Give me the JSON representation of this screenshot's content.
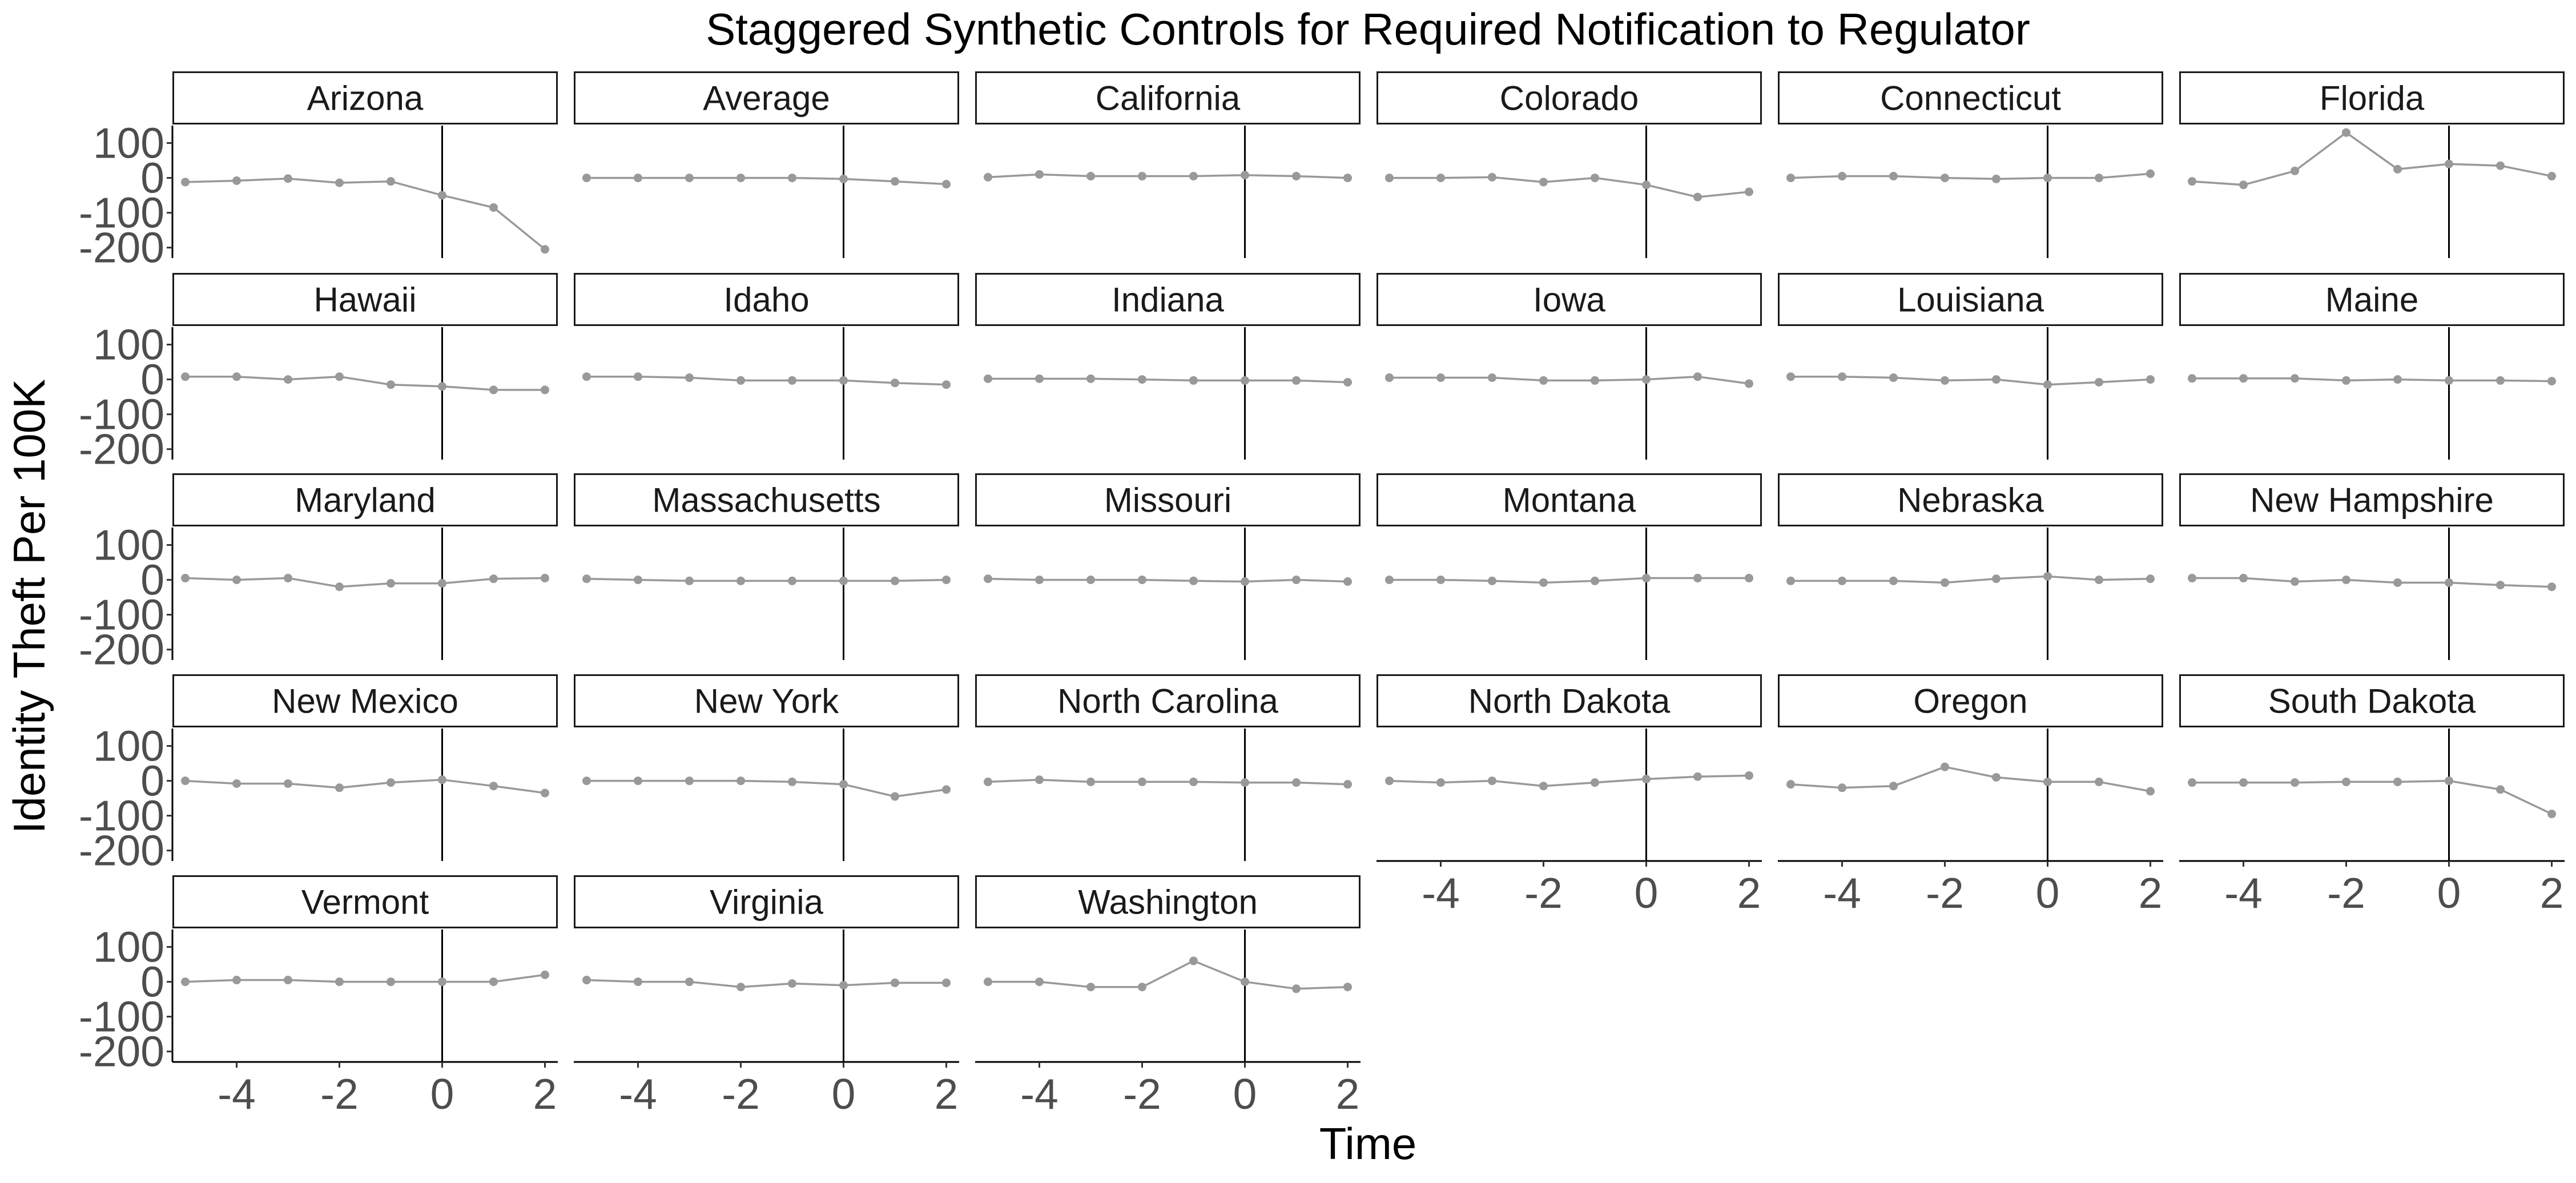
{
  "chart_data": {
    "type": "line",
    "title": "Staggered Synthetic Controls for Required Notification to Regulator",
    "xlabel": "Time",
    "ylabel": "Identity Theft Per 100K",
    "xlim": [
      -5.25,
      2.25
    ],
    "ylim": [
      -230,
      150
    ],
    "x_ticks": [
      -4,
      -2,
      0,
      2
    ],
    "x_tick_labels": [
      "-4",
      "-2",
      "0",
      "2"
    ],
    "y_ticks": [
      100,
      0,
      -100,
      -200
    ],
    "y_tick_labels": [
      "100",
      "0",
      "-100",
      "-200"
    ],
    "vline_x": 0,
    "grid": false,
    "line_color": "#999999",
    "point_color": "#999999",
    "x": [
      -5,
      -4,
      -3,
      -2,
      -1,
      0,
      1,
      2
    ],
    "panels": [
      {
        "name": "Arizona",
        "values": [
          -12,
          -8,
          -2,
          -14,
          -10,
          -50,
          -85,
          -205
        ]
      },
      {
        "name": "Average",
        "values": [
          0,
          0,
          0,
          0,
          0,
          -3,
          -10,
          -18
        ]
      },
      {
        "name": "California",
        "values": [
          2,
          10,
          5,
          5,
          5,
          8,
          5,
          0
        ]
      },
      {
        "name": "Colorado",
        "values": [
          0,
          0,
          2,
          -12,
          0,
          -20,
          -55,
          -40
        ]
      },
      {
        "name": "Connecticut",
        "values": [
          0,
          5,
          5,
          0,
          -3,
          0,
          0,
          12
        ]
      },
      {
        "name": "Florida",
        "values": [
          -10,
          -20,
          20,
          130,
          25,
          40,
          35,
          5
        ]
      },
      {
        "name": "Hawaii",
        "values": [
          8,
          8,
          0,
          8,
          -15,
          -20,
          -30,
          -30
        ]
      },
      {
        "name": "Idaho",
        "values": [
          8,
          8,
          5,
          -3,
          -3,
          -3,
          -10,
          -15
        ]
      },
      {
        "name": "Indiana",
        "values": [
          2,
          2,
          2,
          0,
          -3,
          -3,
          -3,
          -8
        ]
      },
      {
        "name": "Iowa",
        "values": [
          5,
          5,
          5,
          -3,
          -3,
          0,
          8,
          -12
        ]
      },
      {
        "name": "Louisiana",
        "values": [
          8,
          8,
          5,
          -3,
          0,
          -15,
          -8,
          0
        ]
      },
      {
        "name": "Maine",
        "values": [
          3,
          3,
          3,
          -3,
          0,
          -3,
          -3,
          -5
        ]
      },
      {
        "name": "Maryland",
        "values": [
          5,
          0,
          5,
          -20,
          -10,
          -10,
          3,
          5
        ]
      },
      {
        "name": "Massachusetts",
        "values": [
          3,
          0,
          -3,
          -3,
          -3,
          -3,
          -3,
          0
        ]
      },
      {
        "name": "Missouri",
        "values": [
          3,
          0,
          0,
          0,
          -3,
          -5,
          0,
          -5
        ]
      },
      {
        "name": "Montana",
        "values": [
          0,
          0,
          -3,
          -8,
          -3,
          5,
          5,
          5
        ]
      },
      {
        "name": "Nebraska",
        "values": [
          -3,
          -3,
          -3,
          -8,
          3,
          10,
          0,
          3
        ]
      },
      {
        "name": "New Hampshire",
        "values": [
          5,
          5,
          -5,
          0,
          -8,
          -8,
          -15,
          -20
        ]
      },
      {
        "name": "New Mexico",
        "values": [
          0,
          -8,
          -8,
          -20,
          -5,
          3,
          -15,
          -35
        ]
      },
      {
        "name": "New York",
        "values": [
          0,
          0,
          0,
          0,
          -3,
          -10,
          -45,
          -25
        ]
      },
      {
        "name": "North Carolina",
        "values": [
          -3,
          3,
          -3,
          -3,
          -3,
          -5,
          -5,
          -10
        ]
      },
      {
        "name": "North Dakota",
        "values": [
          0,
          -5,
          0,
          -15,
          -5,
          5,
          12,
          15
        ]
      },
      {
        "name": "Oregon",
        "values": [
          -10,
          -20,
          -15,
          40,
          10,
          -3,
          -3,
          -30
        ]
      },
      {
        "name": "South Dakota",
        "values": [
          -5,
          -5,
          -5,
          -3,
          -3,
          0,
          -25,
          -95
        ]
      },
      {
        "name": "Vermont",
        "values": [
          0,
          5,
          5,
          0,
          0,
          0,
          0,
          20
        ]
      },
      {
        "name": "Virginia",
        "values": [
          5,
          0,
          0,
          -15,
          -5,
          -10,
          -3,
          -3
        ]
      },
      {
        "name": "Washington",
        "values": [
          0,
          0,
          -15,
          -15,
          60,
          0,
          -20,
          -15
        ]
      }
    ]
  }
}
